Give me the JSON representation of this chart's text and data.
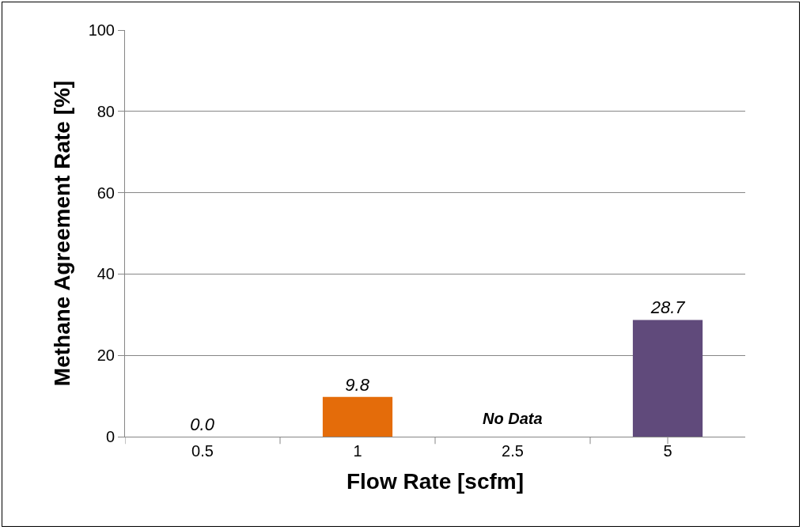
{
  "chart_data": {
    "type": "bar",
    "xlabel": "Flow Rate [scfm]",
    "ylabel": "Methane Agreement Rate [%]",
    "categories": [
      "0.5",
      "1",
      "2.5",
      "5"
    ],
    "values": [
      0.0,
      9.8,
      null,
      28.7
    ],
    "value_labels": [
      "0.0",
      "9.8",
      null,
      "28.7"
    ],
    "colors": [
      "#4f81bd",
      "#e46c0a",
      null,
      "#604a7b"
    ],
    "ylim": [
      0,
      100
    ],
    "yticks": [
      0,
      20,
      40,
      60,
      80,
      100
    ],
    "grid": "y",
    "annotations": [
      "No Data"
    ]
  }
}
